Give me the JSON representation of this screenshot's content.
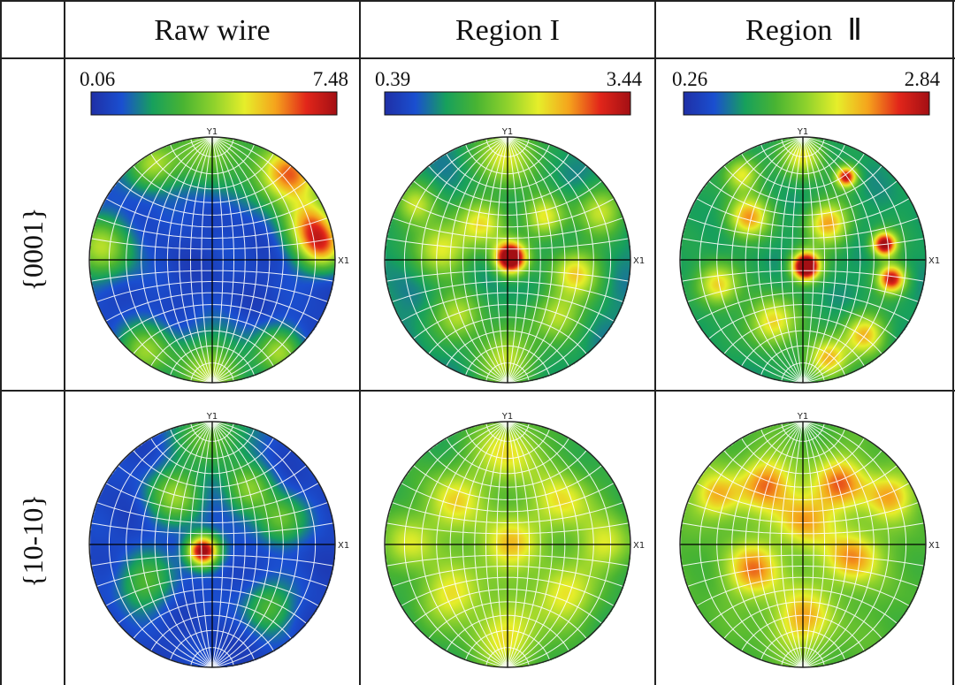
{
  "figure": {
    "column_headers": [
      "Raw wire",
      "Region I",
      "Region  Ⅱ"
    ],
    "row_labels": [
      "{0001}",
      "{10-10}"
    ],
    "axis_labels": {
      "y": "Y1",
      "x": "X1"
    },
    "colorbars": [
      {
        "min": "0.06",
        "max": "7.48"
      },
      {
        "min": "0.39",
        "max": "3.44"
      },
      {
        "min": "0.26",
        "max": "2.84"
      }
    ],
    "colormap": [
      "#1f2fa6",
      "#1a4fd0",
      "#17a05c",
      "#49b432",
      "#8fd22c",
      "#e6ee2a",
      "#f5a31c",
      "#e2261a",
      "#a30f14"
    ],
    "colors": {
      "grid_line": "#ffffff",
      "axis_line": "#000000",
      "table_border": "#222222"
    },
    "pole_figures": [
      {
        "plane": "{0001}",
        "sample": "Raw wire",
        "base_level": 0.08,
        "blobs": [
          [
            0.62,
            0.7,
            0.18,
            0.75
          ],
          [
            0.8,
            0.3,
            0.16,
            0.55
          ],
          [
            0.9,
            0.1,
            0.14,
            0.55
          ],
          [
            -0.5,
            0.78,
            0.14,
            0.45
          ],
          [
            -0.9,
            0.1,
            0.18,
            0.45
          ],
          [
            0.0,
            -0.92,
            0.22,
            0.45
          ],
          [
            -0.55,
            -0.75,
            0.16,
            0.4
          ],
          [
            0.55,
            -0.75,
            0.14,
            0.4
          ],
          [
            0.0,
            0.93,
            0.25,
            0.4
          ]
        ]
      },
      {
        "plane": "{0001}",
        "sample": "Region I",
        "base_level": 0.22,
        "blobs": [
          [
            0.02,
            0.02,
            0.09,
            1.0
          ],
          [
            -0.2,
            0.3,
            0.14,
            0.4
          ],
          [
            0.3,
            0.35,
            0.12,
            0.4
          ],
          [
            -0.55,
            0.1,
            0.16,
            0.4
          ],
          [
            0.55,
            -0.1,
            0.14,
            0.45
          ],
          [
            -0.4,
            -0.45,
            0.14,
            0.35
          ],
          [
            0.4,
            -0.45,
            0.14,
            0.35
          ],
          [
            0.0,
            0.85,
            0.18,
            0.4
          ],
          [
            0.0,
            -0.8,
            0.18,
            0.35
          ],
          [
            -0.75,
            0.45,
            0.12,
            0.35
          ],
          [
            0.75,
            0.4,
            0.14,
            0.35
          ]
        ]
      },
      {
        "plane": "{0001}",
        "sample": "Region II",
        "base_level": 0.25,
        "blobs": [
          [
            0.02,
            -0.05,
            0.08,
            1.0
          ],
          [
            0.66,
            0.13,
            0.07,
            0.8
          ],
          [
            0.72,
            -0.15,
            0.08,
            0.7
          ],
          [
            0.35,
            0.68,
            0.06,
            0.7
          ],
          [
            -0.45,
            0.35,
            0.12,
            0.5
          ],
          [
            -0.25,
            -0.5,
            0.14,
            0.45
          ],
          [
            0.2,
            0.3,
            0.12,
            0.5
          ],
          [
            -0.7,
            -0.2,
            0.12,
            0.45
          ],
          [
            0.5,
            -0.6,
            0.12,
            0.45
          ],
          [
            0.2,
            -0.8,
            0.12,
            0.5
          ],
          [
            -0.5,
            0.7,
            0.1,
            0.4
          ],
          [
            0.0,
            0.85,
            0.12,
            0.4
          ]
        ]
      },
      {
        "plane": "{10-10}",
        "sample": "Raw wire",
        "base_level": 0.08,
        "blobs": [
          [
            -0.08,
            -0.05,
            0.09,
            1.0
          ],
          [
            -0.3,
            0.4,
            0.16,
            0.4
          ],
          [
            0.3,
            0.45,
            0.14,
            0.35
          ],
          [
            0.55,
            0.2,
            0.14,
            0.35
          ],
          [
            -0.55,
            -0.3,
            0.16,
            0.3
          ],
          [
            0.45,
            -0.5,
            0.14,
            0.3
          ],
          [
            0.0,
            0.9,
            0.22,
            0.35
          ]
        ]
      },
      {
        "plane": "{10-10}",
        "sample": "Region I",
        "base_level": 0.3,
        "blobs": [
          [
            0.0,
            0.0,
            0.18,
            0.4
          ],
          [
            -0.45,
            0.35,
            0.18,
            0.35
          ],
          [
            0.45,
            0.35,
            0.18,
            0.35
          ],
          [
            -0.45,
            -0.4,
            0.18,
            0.35
          ],
          [
            0.45,
            -0.4,
            0.18,
            0.35
          ],
          [
            0.0,
            0.75,
            0.2,
            0.35
          ],
          [
            0.0,
            -0.75,
            0.2,
            0.35
          ],
          [
            -0.8,
            0.0,
            0.16,
            0.3
          ],
          [
            0.8,
            0.0,
            0.16,
            0.3
          ]
        ]
      },
      {
        "plane": "{10-10}",
        "sample": "Region II",
        "base_level": 0.38,
        "blobs": [
          [
            -0.3,
            0.5,
            0.16,
            0.4
          ],
          [
            0.3,
            0.5,
            0.16,
            0.4
          ],
          [
            0.4,
            -0.1,
            0.16,
            0.4
          ],
          [
            -0.4,
            -0.2,
            0.16,
            0.4
          ],
          [
            0.0,
            -0.6,
            0.18,
            0.35
          ],
          [
            0.7,
            0.4,
            0.14,
            0.35
          ],
          [
            -0.7,
            0.4,
            0.14,
            0.35
          ],
          [
            0.0,
            0.2,
            0.16,
            0.35
          ]
        ]
      }
    ]
  }
}
